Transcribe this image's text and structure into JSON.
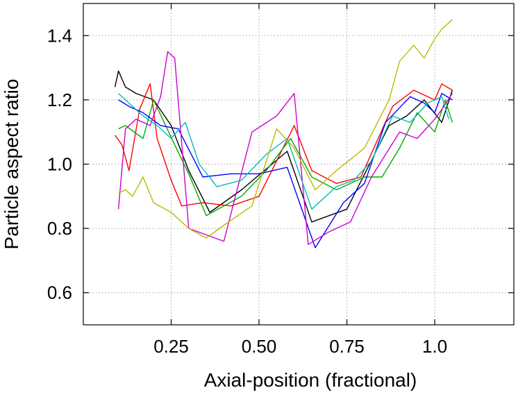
{
  "chart_data": {
    "type": "line",
    "xlabel": "Axial-position (fractional)",
    "ylabel": "Particle aspect ratio",
    "xlim": [
      0.0,
      1.225
    ],
    "ylim": [
      0.5,
      1.5
    ],
    "xticks": [
      {
        "value": 0.25,
        "label": "0.25"
      },
      {
        "value": 0.5,
        "label": "0.50"
      },
      {
        "value": 0.75,
        "label": "0.75"
      },
      {
        "value": 1.0,
        "label": "1.0"
      }
    ],
    "yticks": [
      {
        "value": 0.6,
        "label": "0.6"
      },
      {
        "value": 0.8,
        "label": "0.8"
      },
      {
        "value": 1.0,
        "label": "1.0"
      },
      {
        "value": 1.2,
        "label": "1.2"
      },
      {
        "value": 1.4,
        "label": "1.4"
      }
    ],
    "grid": true,
    "legend": "none",
    "series": [
      {
        "color": "#000000",
        "x": [
          0.09,
          0.1,
          0.12,
          0.15,
          0.2,
          0.25,
          0.3,
          0.36,
          0.45,
          0.58,
          0.65,
          0.75,
          0.87,
          0.92,
          0.97,
          1.02,
          1.05
        ],
        "y": [
          1.24,
          1.29,
          1.24,
          1.22,
          1.2,
          1.12,
          0.98,
          0.85,
          0.92,
          1.04,
          0.82,
          0.86,
          1.12,
          1.15,
          1.2,
          1.13,
          1.23
        ]
      },
      {
        "color": "#ff0000",
        "x": [
          0.09,
          0.11,
          0.13,
          0.16,
          0.19,
          0.21,
          0.25,
          0.28,
          0.34,
          0.42,
          0.5,
          0.6,
          0.65,
          0.72,
          0.79,
          0.88,
          0.94,
          1.0,
          1.02,
          1.05
        ],
        "y": [
          1.09,
          1.06,
          0.98,
          1.17,
          1.25,
          1.08,
          0.95,
          0.87,
          0.88,
          0.87,
          0.9,
          1.12,
          0.98,
          0.94,
          0.96,
          1.18,
          1.23,
          1.2,
          1.25,
          1.23
        ]
      },
      {
        "color": "#00aa00",
        "x": [
          0.1,
          0.12,
          0.17,
          0.2,
          0.26,
          0.3,
          0.35,
          0.45,
          0.52,
          0.59,
          0.65,
          0.72,
          0.8,
          0.85,
          0.9,
          0.95,
          1.0,
          1.03,
          1.05
        ],
        "y": [
          1.11,
          1.12,
          1.08,
          1.2,
          1.06,
          0.97,
          0.84,
          0.9,
          0.98,
          1.08,
          0.96,
          0.92,
          0.96,
          0.96,
          1.05,
          1.16,
          1.1,
          1.2,
          1.13
        ]
      },
      {
        "color": "#0000ff",
        "x": [
          0.1,
          0.13,
          0.17,
          0.22,
          0.27,
          0.34,
          0.42,
          0.5,
          0.58,
          0.66,
          0.74,
          0.8,
          0.86,
          0.93,
          0.97,
          1.0,
          1.02,
          1.05
        ],
        "y": [
          1.2,
          1.18,
          1.16,
          1.12,
          1.11,
          0.96,
          0.97,
          0.97,
          0.99,
          0.74,
          0.88,
          0.94,
          1.13,
          1.21,
          1.19,
          1.16,
          1.22,
          1.2
        ]
      },
      {
        "color": "#cc00cc",
        "x": [
          0.1,
          0.12,
          0.15,
          0.19,
          0.22,
          0.24,
          0.26,
          0.3,
          0.35,
          0.4,
          0.48,
          0.55,
          0.6,
          0.64,
          0.7,
          0.76,
          0.82,
          0.9,
          0.95,
          1.0,
          1.02,
          1.05
        ],
        "y": [
          0.86,
          1.11,
          1.14,
          1.12,
          1.21,
          1.35,
          1.33,
          0.8,
          0.78,
          0.76,
          1.1,
          1.15,
          1.22,
          0.75,
          0.79,
          0.82,
          0.96,
          1.1,
          1.08,
          1.14,
          1.17,
          1.22
        ]
      },
      {
        "color": "#00bbbb",
        "x": [
          0.1,
          0.13,
          0.17,
          0.21,
          0.25,
          0.29,
          0.33,
          0.38,
          0.45,
          0.52,
          0.58,
          0.65,
          0.72,
          0.77,
          0.82,
          0.88,
          0.93,
          0.98,
          1.02,
          1.04
        ],
        "y": [
          1.22,
          1.19,
          1.15,
          1.12,
          1.08,
          1.13,
          1.0,
          0.93,
          0.95,
          1.03,
          1.08,
          0.86,
          0.93,
          0.95,
          1.01,
          1.15,
          1.13,
          1.19,
          1.21,
          1.14
        ]
      },
      {
        "color": "#bbbb00",
        "x": [
          0.1,
          0.12,
          0.14,
          0.17,
          0.2,
          0.25,
          0.3,
          0.35,
          0.4,
          0.48,
          0.55,
          0.6,
          0.66,
          0.72,
          0.8,
          0.87,
          0.9,
          0.94,
          0.97,
          1.0,
          1.02,
          1.05
        ],
        "y": [
          0.91,
          0.92,
          0.9,
          0.96,
          0.88,
          0.85,
          0.8,
          0.77,
          0.81,
          0.87,
          1.11,
          1.05,
          0.92,
          0.98,
          1.05,
          1.2,
          1.32,
          1.37,
          1.33,
          1.39,
          1.42,
          1.45
        ]
      }
    ]
  }
}
